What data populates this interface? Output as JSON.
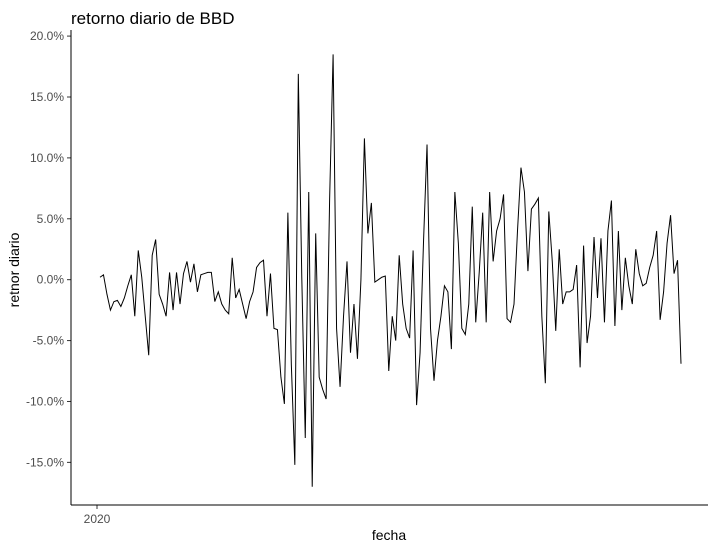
{
  "chart_data": {
    "type": "line",
    "title": "retorno diario de BBD",
    "xlabel": "fecha",
    "ylabel": "retnor diario",
    "x_ticks": [
      "2020"
    ],
    "y_ticks": [
      {
        "value": 0.2,
        "label": "20.0%"
      },
      {
        "value": 0.15,
        "label": "15.0%"
      },
      {
        "value": 0.1,
        "label": "10.0%"
      },
      {
        "value": 0.05,
        "label": "5.0%"
      },
      {
        "value": 0.0,
        "label": "0.0%"
      },
      {
        "value": -0.05,
        "label": "-5.0%"
      },
      {
        "value": -0.1,
        "label": "-10.0%"
      },
      {
        "value": -0.15,
        "label": "-15.0%"
      }
    ],
    "ylim": [
      -0.185,
      0.205
    ],
    "grid": false,
    "legend": "none",
    "line_color": "#000000",
    "series": [
      {
        "values": [
          0.002,
          0.004,
          -0.012,
          -0.025,
          -0.018,
          -0.017,
          -0.022,
          -0.015,
          -0.005,
          0.004,
          -0.03,
          0.024,
          0.002,
          -0.03,
          -0.062,
          0.02,
          0.033,
          -0.012,
          -0.02,
          -0.03,
          0.006,
          -0.025,
          0.006,
          -0.02,
          0.005,
          0.015,
          -0.002,
          0.013,
          -0.01,
          0.004,
          0.005,
          0.006,
          0.006,
          -0.018,
          -0.01,
          -0.02,
          -0.025,
          -0.028,
          0.018,
          -0.015,
          -0.008,
          -0.02,
          -0.032,
          -0.018,
          -0.01,
          0.01,
          0.014,
          0.016,
          -0.03,
          0.005,
          -0.04,
          -0.041,
          -0.08,
          -0.102,
          0.055,
          -0.07,
          -0.152,
          0.169,
          0.002,
          -0.13,
          0.072,
          -0.17,
          0.038,
          -0.08,
          -0.09,
          -0.098,
          0.066,
          0.185,
          -0.04,
          -0.088,
          -0.03,
          0.015,
          -0.06,
          -0.02,
          -0.065,
          0.0,
          0.116,
          0.038,
          0.063,
          -0.002,
          0.0,
          0.002,
          0.003,
          -0.075,
          -0.03,
          -0.05,
          0.02,
          -0.02,
          -0.04,
          -0.048,
          0.024,
          -0.103,
          -0.06,
          0.032,
          0.111,
          -0.04,
          -0.083,
          -0.05,
          -0.03,
          -0.005,
          -0.01,
          -0.057,
          0.072,
          0.03,
          -0.04,
          -0.045,
          -0.02,
          0.06,
          -0.035,
          0.006,
          0.055,
          -0.035,
          0.072,
          0.015,
          0.04,
          0.05,
          0.07,
          -0.032,
          -0.035,
          -0.02,
          0.04,
          0.092,
          0.072,
          0.007,
          0.058,
          0.062,
          0.067,
          -0.03,
          -0.085,
          0.056,
          0.015,
          -0.042,
          0.025,
          -0.02,
          -0.01,
          -0.01,
          -0.008,
          0.012,
          -0.072,
          0.028,
          -0.052,
          -0.03,
          0.035,
          -0.015,
          0.034,
          -0.035,
          0.04,
          0.065,
          -0.038,
          0.04,
          -0.025,
          0.018,
          -0.005,
          -0.02,
          0.025,
          0.005,
          -0.005,
          -0.003,
          0.01,
          0.02,
          0.04,
          -0.033,
          -0.01,
          0.03,
          0.053,
          0.005,
          0.016,
          -0.069
        ]
      }
    ]
  }
}
